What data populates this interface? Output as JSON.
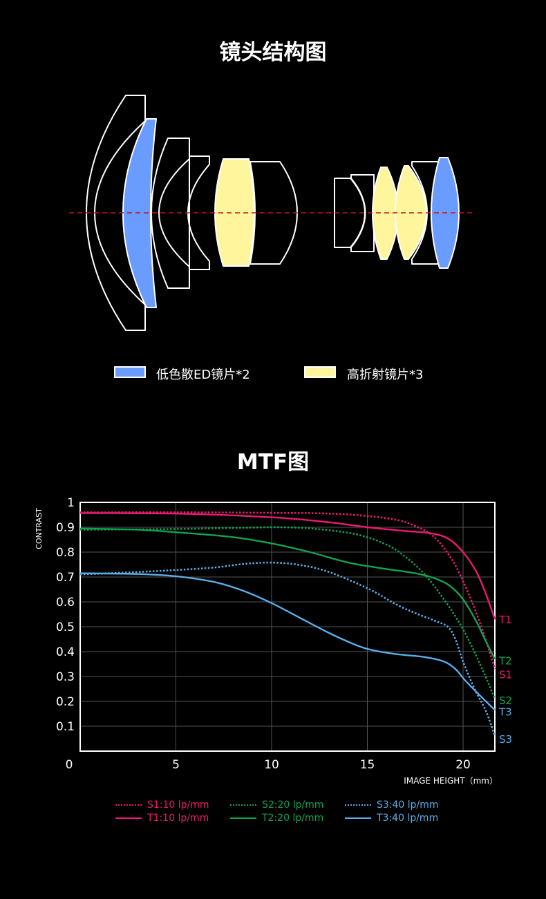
{
  "lens_section": {
    "title": "镜头结构图",
    "legend": [
      {
        "label": "低色散ED镜片*2",
        "color": "#6a9bff"
      },
      {
        "label": "高折射镜片*3",
        "color": "#fff59d"
      }
    ],
    "axis_color": "#c0161c"
  },
  "mtf_section": {
    "title": "MTF图"
  },
  "chart_data": {
    "type": "line",
    "title": "MTF图",
    "xlabel": "IMAGE HEIGHT（mm）",
    "ylabel": "CONTRAST",
    "xlim": [
      0,
      21.66
    ],
    "ylim": [
      0,
      1
    ],
    "grid": true,
    "x_ticks": [
      "0",
      "5",
      "10",
      "15",
      "20"
    ],
    "x_tick_values": [
      0,
      5,
      10,
      15,
      20
    ],
    "y_ticks": [
      "1",
      "0.9",
      "0.8",
      "0.7",
      "0.6",
      "0.5",
      "0.4",
      "0.3",
      "0.2",
      "0.1"
    ],
    "y_tick_values": [
      1,
      0.9,
      0.8,
      0.7,
      0.6,
      0.5,
      0.4,
      0.3,
      0.2,
      0.1
    ],
    "legend_placement": "bottom",
    "series": [
      {
        "name": "S1",
        "legend": "S1:10 lp/mm",
        "color": "#ec1a72",
        "style": "dotted",
        "end_label_y": 0.31,
        "points": [
          [
            0,
            0.96
          ],
          [
            5,
            0.96
          ],
          [
            10,
            0.958
          ],
          [
            13,
            0.955
          ],
          [
            15,
            0.945
          ],
          [
            16.5,
            0.93
          ],
          [
            17.5,
            0.905
          ],
          [
            18.5,
            0.86
          ],
          [
            19.5,
            0.76
          ],
          [
            20.3,
            0.63
          ],
          [
            21,
            0.49
          ],
          [
            21.66,
            0.33
          ]
        ]
      },
      {
        "name": "T1",
        "legend": "T1:10 lp/mm",
        "color": "#ec1a72",
        "style": "solid",
        "end_label_y": 0.53,
        "points": [
          [
            0,
            0.957
          ],
          [
            5,
            0.955
          ],
          [
            10,
            0.94
          ],
          [
            13,
            0.92
          ],
          [
            15,
            0.9
          ],
          [
            17,
            0.885
          ],
          [
            18.3,
            0.876
          ],
          [
            19.2,
            0.855
          ],
          [
            20,
            0.8
          ],
          [
            20.7,
            0.72
          ],
          [
            21.2,
            0.63
          ],
          [
            21.66,
            0.53
          ]
        ]
      },
      {
        "name": "S2",
        "legend": "S2:20 lp/mm",
        "color": "#0fa451",
        "style": "dotted",
        "end_label_y": 0.205,
        "points": [
          [
            0,
            0.89
          ],
          [
            5,
            0.893
          ],
          [
            8,
            0.897
          ],
          [
            10.5,
            0.9
          ],
          [
            12.5,
            0.892
          ],
          [
            14.5,
            0.87
          ],
          [
            16,
            0.83
          ],
          [
            17,
            0.78
          ],
          [
            18,
            0.71
          ],
          [
            19,
            0.61
          ],
          [
            20,
            0.49
          ],
          [
            21,
            0.33
          ],
          [
            21.66,
            0.21
          ]
        ]
      },
      {
        "name": "T2",
        "legend": "T2:20 lp/mm",
        "color": "#0fa451",
        "style": "solid",
        "end_label_y": 0.365,
        "points": [
          [
            0,
            0.895
          ],
          [
            3,
            0.89
          ],
          [
            5,
            0.88
          ],
          [
            8,
            0.86
          ],
          [
            10,
            0.835
          ],
          [
            12,
            0.8
          ],
          [
            14,
            0.758
          ],
          [
            16,
            0.732
          ],
          [
            17.5,
            0.715
          ],
          [
            18.5,
            0.695
          ],
          [
            19.3,
            0.665
          ],
          [
            20,
            0.61
          ],
          [
            20.7,
            0.52
          ],
          [
            21.2,
            0.44
          ],
          [
            21.66,
            0.37
          ]
        ]
      },
      {
        "name": "S3",
        "legend": "S3:40 lp/mm",
        "color": "#5aaee9",
        "style": "dotted",
        "end_label_y": 0.05,
        "points": [
          [
            0,
            0.71
          ],
          [
            3,
            0.72
          ],
          [
            5,
            0.728
          ],
          [
            7,
            0.738
          ],
          [
            8.5,
            0.752
          ],
          [
            10,
            0.758
          ],
          [
            11.5,
            0.748
          ],
          [
            13,
            0.72
          ],
          [
            15,
            0.655
          ],
          [
            16.5,
            0.59
          ],
          [
            17.5,
            0.555
          ],
          [
            18.5,
            0.525
          ],
          [
            19.2,
            0.5
          ],
          [
            19.6,
            0.45
          ],
          [
            20,
            0.36
          ],
          [
            20.6,
            0.25
          ],
          [
            21.2,
            0.16
          ],
          [
            21.66,
            0.06
          ]
        ]
      },
      {
        "name": "T3",
        "legend": "T3:40 lp/mm",
        "color": "#5aaee9",
        "style": "solid",
        "end_label_y": 0.16,
        "points": [
          [
            0,
            0.715
          ],
          [
            3,
            0.712
          ],
          [
            5,
            0.703
          ],
          [
            7,
            0.68
          ],
          [
            8.5,
            0.645
          ],
          [
            10,
            0.595
          ],
          [
            11.5,
            0.535
          ],
          [
            13,
            0.475
          ],
          [
            14.3,
            0.43
          ],
          [
            15.2,
            0.407
          ],
          [
            16.5,
            0.39
          ],
          [
            18,
            0.378
          ],
          [
            19,
            0.36
          ],
          [
            19.6,
            0.33
          ],
          [
            20.1,
            0.285
          ],
          [
            20.8,
            0.23
          ],
          [
            21.66,
            0.165
          ]
        ]
      }
    ]
  }
}
